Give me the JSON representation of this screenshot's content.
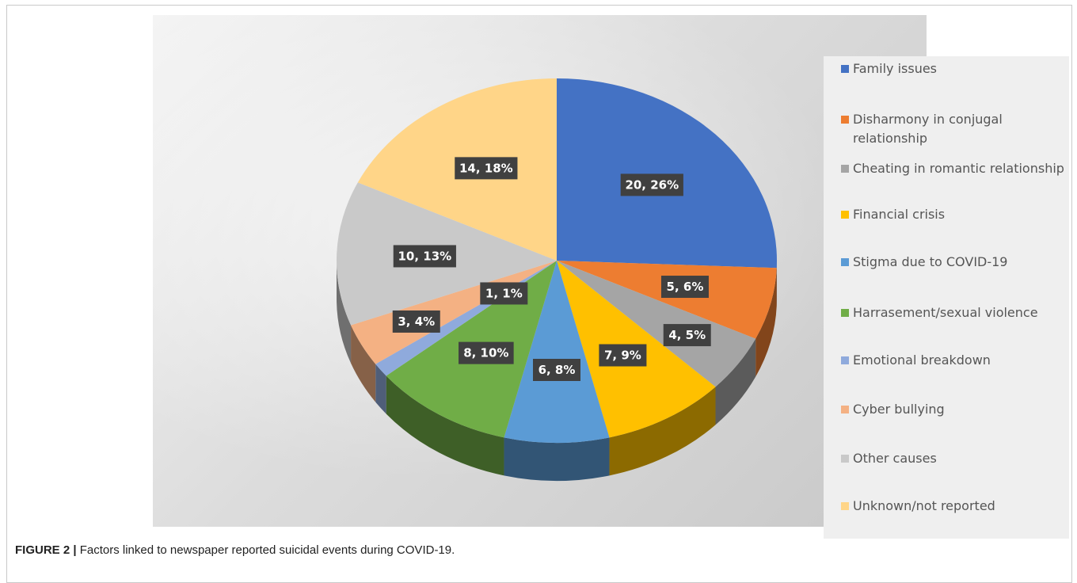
{
  "caption": {
    "figure_label": "FIGURE 2 |",
    "text": "Factors linked to newspaper reported suicidal events during COVID-19."
  },
  "chart_data": {
    "type": "pie",
    "style": "3d",
    "title": "",
    "legend_position": "right",
    "series": [
      {
        "name": "Family issues",
        "value": 20,
        "percent": 26,
        "label": "20, 26%",
        "color": "#4472C4"
      },
      {
        "name": "Disharmony in conjugal relationship",
        "value": 5,
        "percent": 6,
        "label": "5, 6%",
        "color": "#ED7D31"
      },
      {
        "name": "Cheating in romantic relationship",
        "value": 4,
        "percent": 5,
        "label": "4, 5%",
        "color": "#A5A5A5"
      },
      {
        "name": "Financial crisis",
        "value": 7,
        "percent": 9,
        "label": "7, 9%",
        "color": "#FFC000"
      },
      {
        "name": "Stigma due to COVID-19",
        "value": 6,
        "percent": 8,
        "label": "6, 8%",
        "color": "#5B9BD5"
      },
      {
        "name": "Harrasement/sexual violence",
        "value": 8,
        "percent": 10,
        "label": "8, 10%",
        "color": "#70AD47"
      },
      {
        "name": "Emotional breakdown",
        "value": 1,
        "percent": 1,
        "label": "1, 1%",
        "color": "#8FAADC"
      },
      {
        "name": "Cyber bullying",
        "value": 3,
        "percent": 4,
        "label": "3, 4%",
        "color": "#F4B183"
      },
      {
        "name": "Other causes",
        "value": 10,
        "percent": 13,
        "label": "10, 13%",
        "color": "#C9C9C9"
      },
      {
        "name": "Unknown/not reported",
        "value": 14,
        "percent": 18,
        "label": "14, 18%",
        "color": "#FFD588"
      }
    ]
  }
}
